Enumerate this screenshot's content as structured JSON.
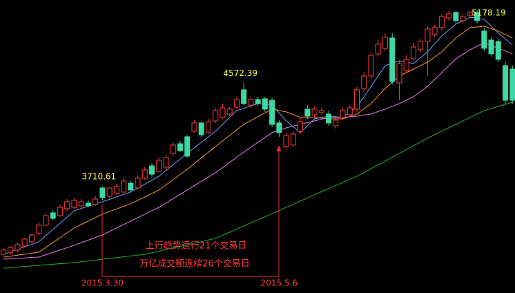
{
  "chart_data": {
    "type": "candlestick",
    "categories": [
      null,
      null,
      null,
      null,
      null,
      null,
      null,
      null,
      null,
      null,
      null,
      null,
      null,
      null,
      "2015.3.30",
      null,
      null,
      null,
      null,
      null,
      null,
      null,
      null,
      null,
      null,
      null,
      null,
      null,
      null,
      null,
      null,
      null,
      null,
      null,
      null,
      null,
      null,
      null,
      null,
      "2015.5.6",
      null,
      null,
      null,
      null,
      null,
      null,
      null,
      null,
      null,
      null,
      null,
      null,
      null,
      null,
      null,
      null,
      null,
      null,
      null,
      null,
      null,
      null,
      null,
      null,
      null,
      null,
      null,
      null,
      null,
      null,
      null,
      null,
      null
    ],
    "open": [
      3148,
      3160,
      3183,
      3217,
      3252,
      3321,
      3390,
      3493,
      3470,
      3528,
      3539,
      3551,
      3574,
      3562,
      3700,
      3631,
      3654,
      3666,
      3740,
      3700,
      3781,
      3884,
      3838,
      3873,
      3988,
      4068,
      4126,
      4172,
      4241,
      4160,
      4258,
      4287,
      4315,
      4373,
      4517,
      4390,
      4436,
      4442,
      4430,
      4241,
      4045,
      4057,
      4172,
      4356,
      4310,
      4327,
      4315,
      4218,
      4287,
      4310,
      4356,
      4528,
      4632,
      4816,
      4862,
      4948,
      4574,
      4678,
      4775,
      4850,
      4919,
      4977,
      5034,
      5115,
      5161,
      5092,
      5138,
      5161,
      5005,
      4931,
      4919,
      4718,
      4689
    ],
    "high": [
      3194,
      3217,
      3240,
      3286,
      3321,
      3413,
      3493,
      3516,
      3562,
      3608,
      3620,
      3608,
      3597,
      3631,
      3710.61,
      3706,
      3735,
      3781,
      3758,
      3804,
      3873,
      3907,
      3953,
      3976,
      4080,
      4091,
      4137,
      4264,
      4252,
      4275,
      4367,
      4402,
      4379,
      4459,
      4572.39,
      4459,
      4459,
      4459,
      4448,
      4264,
      4160,
      4172,
      4287,
      4390,
      4379,
      4367,
      4344,
      4298,
      4367,
      4390,
      4540,
      4666,
      4827,
      4931,
      4988,
      4988,
      4758,
      4804,
      4908,
      4942,
      5046,
      5057,
      5149,
      5172,
      5172,
      5149,
      5172,
      5178.19,
      5034,
      4954,
      4942,
      4747,
      4718
    ],
    "low": [
      3137,
      3148,
      3165,
      3206,
      3240,
      3309,
      3378,
      3436,
      3459,
      3505,
      3516,
      3528,
      3539,
      3551,
      3597,
      3620,
      3643,
      3654,
      3666,
      3689,
      3769,
      3792,
      3827,
      3850,
      3965,
      3999,
      3953,
      4160,
      4126,
      4149,
      4241,
      4275,
      4298,
      4356,
      4390,
      4367,
      4379,
      4333,
      4206,
      4126,
      4022,
      4045,
      4149,
      4275,
      4287,
      4310,
      4218,
      4195,
      4264,
      4287,
      4333,
      4505,
      4609,
      4793,
      4839,
      4563,
      4430,
      4655,
      4758,
      4827,
      4632,
      4954,
      5011,
      5092,
      5069,
      5069,
      5115,
      5069,
      4839,
      4793,
      4747,
      4402,
      4402
    ],
    "close": [
      3183,
      3206,
      3229,
      3275,
      3309,
      3390,
      3470,
      3447,
      3539,
      3585,
      3597,
      3585,
      3551,
      3608,
      3620,
      3700,
      3712,
      3758,
      3683,
      3781,
      3850,
      3815,
      3930,
      3953,
      4057,
      4011,
      3965,
      4241,
      4143,
      4252,
      4344,
      4367,
      4356,
      4436,
      4402,
      4436,
      4402,
      4356,
      4229,
      4160,
      4137,
      4149,
      4252,
      4298,
      4356,
      4344,
      4241,
      4264,
      4344,
      4367,
      4517,
      4632,
      4804,
      4896,
      4954,
      4586,
      4735,
      4770,
      4873,
      4919,
      5023,
      5034,
      5126,
      5149,
      5092,
      5126,
      5161,
      5092,
      4862,
      4816,
      4770,
      4430,
      4430
    ],
    "high_labels": [
      null,
      null,
      null,
      null,
      null,
      null,
      null,
      null,
      null,
      null,
      null,
      null,
      null,
      null,
      "3710.61",
      null,
      null,
      null,
      null,
      null,
      null,
      null,
      null,
      null,
      null,
      null,
      null,
      null,
      null,
      null,
      null,
      null,
      null,
      null,
      "4572.39",
      null,
      null,
      null,
      null,
      null,
      null,
      null,
      null,
      null,
      null,
      null,
      null,
      null,
      null,
      null,
      null,
      null,
      null,
      null,
      null,
      null,
      null,
      null,
      null,
      null,
      null,
      null,
      null,
      null,
      null,
      null,
      null,
      "5178.19",
      null,
      null,
      null,
      null,
      null
    ],
    "up_color": "#ff3c3c",
    "down_color": "#3fd7a6",
    "label_color": "#ffff54",
    "ma_lines": [
      {
        "color": "#6f9bff",
        "values": [
          3148,
          3169,
          3190,
          3210,
          3231,
          3252,
          3304,
          3355,
          3407,
          3458,
          3510,
          3529,
          3548,
          3566,
          3585,
          3605,
          3626,
          3646,
          3666,
          3699,
          3732,
          3765,
          3798,
          3846,
          3893,
          3941,
          3988,
          4034,
          4080,
          4126,
          4172,
          4229,
          4287,
          4344,
          4363,
          4383,
          4402,
          4396,
          4390,
          4324,
          4258,
          4209,
          4160,
          4218,
          4275,
          4287,
          4298,
          4293,
          4287,
          4330,
          4373,
          4459,
          4545,
          4632,
          4718,
          4738,
          4758,
          4747,
          4735,
          4784,
          4833,
          4899,
          4965,
          5014,
          5063,
          5092,
          5120,
          5112,
          5103,
          5046,
          4988,
          4939,
          4890
        ]
      },
      {
        "color": "#ff9a1f",
        "values": [
          3125,
          3133,
          3141,
          3149,
          3157,
          3165,
          3205,
          3246,
          3286,
          3327,
          3367,
          3396,
          3425,
          3453,
          3482,
          3504,
          3525,
          3547,
          3568,
          3597,
          3626,
          3654,
          3683,
          3726,
          3769,
          3812,
          3855,
          3903,
          3950,
          3998,
          4045,
          4091,
          4137,
          4183,
          4229,
          4261,
          4293,
          4324,
          4356,
          4345,
          4333,
          4310,
          4287,
          4287,
          4287,
          4281,
          4275,
          4275,
          4275,
          4295,
          4315,
          4359,
          4402,
          4465,
          4528,
          4580,
          4632,
          4661,
          4689,
          4718,
          4747,
          4790,
          4833,
          4891,
          4948,
          4991,
          5034,
          5040,
          5046,
          5026,
          5005,
          4977,
          4948
        ]
      },
      {
        "color": "#f07af0",
        "values": [
          3108,
          3111,
          3115,
          3118,
          3122,
          3125,
          3145,
          3164,
          3184,
          3203,
          3223,
          3245,
          3266,
          3288,
          3309,
          3338,
          3367,
          3395,
          3424,
          3453,
          3482,
          3510,
          3539,
          3575,
          3611,
          3647,
          3683,
          3719,
          3755,
          3791,
          3827,
          3870,
          3913,
          3956,
          3999,
          4039,
          4080,
          4120,
          4160,
          4180,
          4200,
          4215,
          4229,
          4244,
          4258,
          4273,
          4287,
          4287,
          4287,
          4293,
          4298,
          4307,
          4315,
          4336,
          4356,
          4379,
          4402,
          4431,
          4459,
          4502,
          4545,
          4603,
          4660,
          4718,
          4775,
          4813,
          4850,
          4879,
          4908,
          4885,
          4862,
          4839,
          4816
        ]
      },
      {
        "color": "#19b82c",
        "values": [
          3033,
          3038,
          3042,
          3047,
          3051,
          3056,
          3061,
          3065,
          3070,
          3074,
          3079,
          3086,
          3093,
          3100,
          3107,
          3114,
          3120,
          3127,
          3134,
          3141,
          3148,
          3161,
          3174,
          3188,
          3201,
          3214,
          3227,
          3240,
          3254,
          3267,
          3280,
          3306,
          3332,
          3358,
          3384,
          3410,
          3435,
          3461,
          3487,
          3513,
          3539,
          3565,
          3591,
          3617,
          3643,
          3669,
          3694,
          3720,
          3746,
          3772,
          3798,
          3830,
          3861,
          3893,
          3924,
          3956,
          3988,
          4019,
          4051,
          4082,
          4114,
          4143,
          4172,
          4200,
          4229,
          4258,
          4287,
          4315,
          4344,
          4361,
          4379,
          4396,
          4413
        ]
      }
    ],
    "annotations": [
      "上行趋势运行21个交易日",
      "万亿成交额连续26个交易日"
    ],
    "annotation_color": "#ff3c3c",
    "ylim": [
      2826,
      5264
    ]
  }
}
